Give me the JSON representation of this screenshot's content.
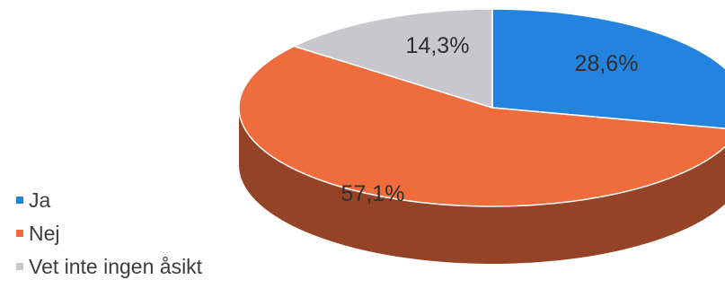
{
  "chart_data": {
    "type": "pie",
    "style": "3d",
    "categories": [
      "Ja",
      "Nej",
      "Vet inte ingen åsikt"
    ],
    "values": [
      28.6,
      57.1,
      14.3
    ],
    "value_labels": [
      "28,6%",
      "57,1%",
      "14,3%"
    ],
    "colors": [
      "#2483df",
      "#ef6c3d",
      "#c8c8cc"
    ],
    "legend_position": "left"
  }
}
